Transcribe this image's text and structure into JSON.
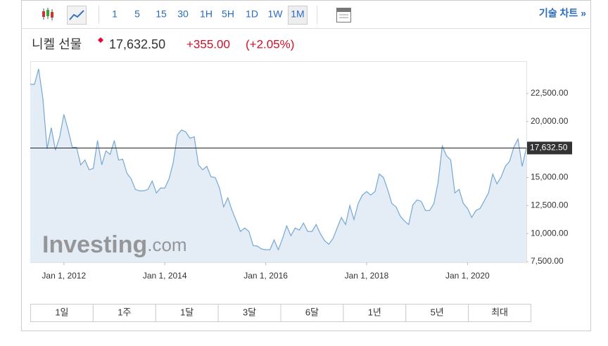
{
  "toolbar": {
    "intervals": [
      "1",
      "5",
      "15",
      "30",
      "1H",
      "5H",
      "1D",
      "1W",
      "1M"
    ],
    "selected": 8,
    "tech_chart": "기술 차트 »"
  },
  "header": {
    "name": "니켈 선물",
    "change": "+355.00",
    "change_pct": "(+2.05%)"
  },
  "watermark": [
    "Investing",
    ".com"
  ],
  "periods": [
    "1일",
    "1주",
    "1달",
    "3달",
    "6달",
    "1년",
    "5년",
    "최대"
  ],
  "chart_data": {
    "type": "area",
    "color": "#76a8d4",
    "fill": "#e4edf6",
    "x": [
      "2011-05",
      "2011-06",
      "2011-07",
      "2011-08",
      "2011-09",
      "2011-10",
      "2011-11",
      "2011-12",
      "2012-01",
      "2012-02",
      "2012-03",
      "2012-04",
      "2012-05",
      "2012-06",
      "2012-07",
      "2012-08",
      "2012-09",
      "2012-10",
      "2012-11",
      "2012-12",
      "2013-01",
      "2013-02",
      "2013-03",
      "2013-04",
      "2013-05",
      "2013-06",
      "2013-07",
      "2013-08",
      "2013-09",
      "2013-10",
      "2013-11",
      "2013-12",
      "2014-01",
      "2014-02",
      "2014-03",
      "2014-04",
      "2014-05",
      "2014-06",
      "2014-07",
      "2014-08",
      "2014-09",
      "2014-10",
      "2014-11",
      "2014-12",
      "2015-01",
      "2015-02",
      "2015-03",
      "2015-04",
      "2015-05",
      "2015-06",
      "2015-07",
      "2015-08",
      "2015-09",
      "2015-10",
      "2015-11",
      "2015-12",
      "2016-01",
      "2016-02",
      "2016-03",
      "2016-04",
      "2016-05",
      "2016-06",
      "2016-07",
      "2016-08",
      "2016-09",
      "2016-10",
      "2016-11",
      "2016-12",
      "2017-01",
      "2017-02",
      "2017-03",
      "2017-04",
      "2017-05",
      "2017-06",
      "2017-07",
      "2017-08",
      "2017-09",
      "2017-10",
      "2017-11",
      "2017-12",
      "2018-01",
      "2018-02",
      "2018-03",
      "2018-04",
      "2018-05",
      "2018-06",
      "2018-07",
      "2018-08",
      "2018-09",
      "2018-10",
      "2018-11",
      "2018-12",
      "2019-01",
      "2019-02",
      "2019-03",
      "2019-04",
      "2019-05",
      "2019-06",
      "2019-07",
      "2019-08",
      "2019-09",
      "2019-10",
      "2019-11",
      "2019-12",
      "2020-01",
      "2020-02",
      "2020-03",
      "2020-04",
      "2020-05",
      "2020-06",
      "2020-07",
      "2020-08",
      "2020-09",
      "2020-10",
      "2020-11",
      "2020-12",
      "2021-01",
      "2021-02",
      "2021-03"
    ],
    "values": [
      23310,
      23310,
      24690,
      22060,
      17560,
      19440,
      17440,
      18630,
      20630,
      19250,
      17690,
      17690,
      16130,
      16560,
      15690,
      15810,
      18310,
      16130,
      17380,
      17060,
      18310,
      16560,
      16630,
      15380,
      14880,
      13940,
      13810,
      13810,
      13940,
      14690,
      13630,
      14060,
      14060,
      14880,
      16310,
      18810,
      19250,
      19060,
      18500,
      18630,
      16130,
      15690,
      16000,
      15060,
      15000,
      14060,
      12380,
      13190,
      12060,
      11130,
      10190,
      10500,
      10190,
      8940,
      8880,
      8630,
      8560,
      8560,
      9440,
      8560,
      9560,
      10690,
      9810,
      10500,
      10310,
      10940,
      10190,
      10190,
      10810,
      10000,
      9380,
      9060,
      9560,
      10500,
      11440,
      10810,
      12500,
      11250,
      12690,
      13440,
      13750,
      13440,
      13750,
      15310,
      15000,
      13940,
      12690,
      12380,
      11560,
      11130,
      10810,
      12560,
      13000,
      12880,
      12060,
      12060,
      12690,
      14560,
      17810,
      16940,
      16560,
      13630,
      13940,
      12690,
      12250,
      11440,
      12060,
      12250,
      12940,
      13630,
      15310,
      14440,
      15060,
      16000,
      16440,
      17690,
      18440,
      16000,
      17630
    ],
    "xlim": [
      "2011-05",
      "2021-03"
    ],
    "xticks": [
      {
        "value": "2012-01",
        "label": "Jan 1, 2012"
      },
      {
        "value": "2014-01",
        "label": "Jan 1, 2014"
      },
      {
        "value": "2016-01",
        "label": "Jan 1, 2016"
      },
      {
        "value": "2018-01",
        "label": "Jan 1, 2018"
      },
      {
        "value": "2020-01",
        "label": "Jan 1, 2020"
      }
    ],
    "ylim": [
      7440,
      25375
    ],
    "yticks": [
      {
        "value": 7500,
        "label": "7,500.00"
      },
      {
        "value": 10000,
        "label": "10,000.00"
      },
      {
        "value": 12500,
        "label": "12,500.00"
      },
      {
        "value": 15000,
        "label": "15,000.00"
      },
      {
        "value": 20000,
        "label": "20,000.00"
      },
      {
        "value": 22500,
        "label": "22,500.00"
      }
    ],
    "current_price": {
      "value": 17632.5,
      "label": "17,632.50"
    }
  }
}
